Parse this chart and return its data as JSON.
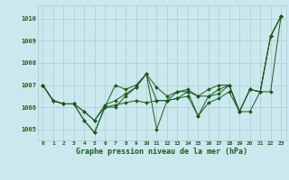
{
  "xlabel": "Graphe pression niveau de la mer (hPa)",
  "bg_color": "#cce8ef",
  "grid_color": "#aacccc",
  "line_color": "#1a5c1a",
  "xlim": [
    -0.5,
    23.5
  ],
  "ylim": [
    1004.5,
    1010.6
  ],
  "yticks": [
    1005,
    1006,
    1007,
    1008,
    1009,
    1010
  ],
  "xticks": [
    0,
    1,
    2,
    3,
    4,
    5,
    6,
    7,
    8,
    9,
    10,
    11,
    12,
    13,
    14,
    15,
    16,
    17,
    18,
    19,
    20,
    21,
    22,
    23
  ],
  "series": [
    [
      1007.0,
      1006.3,
      1006.15,
      1006.15,
      1005.4,
      1004.85,
      1006.0,
      1007.0,
      1006.8,
      1007.0,
      1007.5,
      1005.0,
      1006.3,
      1006.4,
      1006.7,
      1005.6,
      1006.5,
      1006.8,
      1007.0,
      1005.8,
      1006.8,
      1006.7,
      1009.2,
      1010.1
    ],
    [
      1007.0,
      1006.3,
      1006.15,
      1006.15,
      1005.4,
      1004.85,
      1006.0,
      1006.1,
      1006.2,
      1006.3,
      1006.2,
      1006.3,
      1006.3,
      1006.4,
      1006.5,
      1005.6,
      1006.2,
      1006.4,
      1006.7,
      1005.8,
      1005.8,
      1006.7,
      1006.7,
      1010.1
    ],
    [
      1007.0,
      1006.3,
      1006.15,
      1006.15,
      1005.8,
      1005.4,
      1006.0,
      1006.0,
      1006.5,
      1006.9,
      1007.5,
      1006.3,
      1006.3,
      1006.7,
      1006.8,
      1006.5,
      1006.5,
      1006.6,
      1007.0,
      1005.8,
      1006.8,
      1006.7,
      1009.2,
      1010.1
    ],
    [
      1007.0,
      1006.3,
      1006.15,
      1006.15,
      1005.8,
      1005.4,
      1006.1,
      1006.3,
      1006.6,
      1006.9,
      1007.5,
      1006.9,
      1006.5,
      1006.7,
      1006.7,
      1006.5,
      1006.8,
      1007.0,
      1007.0,
      1005.8,
      1006.8,
      1006.7,
      1009.2,
      1010.1
    ]
  ]
}
